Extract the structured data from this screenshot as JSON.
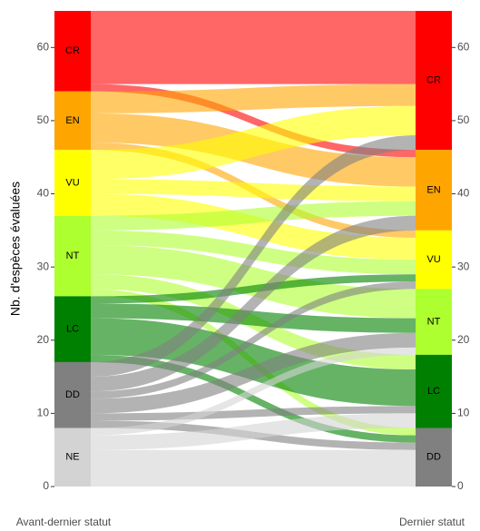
{
  "chart_data": {
    "type": "alluvial",
    "y_label": "Nb. d'espèces évaluées",
    "x_labels": [
      "Avant-dernier statut",
      "Dernier statut"
    ],
    "ylim": [
      0,
      65
    ],
    "yticks": [
      0,
      10,
      20,
      30,
      40,
      50,
      60
    ],
    "strata": [
      {
        "name": "CR",
        "color": "#ff0000"
      },
      {
        "name": "EN",
        "color": "#ffa500"
      },
      {
        "name": "VU",
        "color": "#ffff00"
      },
      {
        "name": "NT",
        "color": "#adff2f"
      },
      {
        "name": "LC",
        "color": "#008000"
      },
      {
        "name": "DD",
        "color": "#808080"
      },
      {
        "name": "NE",
        "color": "#d3d3d3"
      }
    ],
    "flows": [
      {
        "from": 0,
        "to": 0,
        "value": 10
      },
      {
        "from": 0,
        "to": 1,
        "value": 1
      },
      {
        "from": 1,
        "to": 0,
        "value": 3
      },
      {
        "from": 1,
        "to": 1,
        "value": 4
      },
      {
        "from": 1,
        "to": 2,
        "value": 1
      },
      {
        "from": 2,
        "to": 0,
        "value": 4
      },
      {
        "from": 2,
        "to": 1,
        "value": 2
      },
      {
        "from": 2,
        "to": 2,
        "value": 3
      },
      {
        "from": 3,
        "to": 1,
        "value": 2
      },
      {
        "from": 3,
        "to": 2,
        "value": 2
      },
      {
        "from": 3,
        "to": 3,
        "value": 4
      },
      {
        "from": 3,
        "to": 4,
        "value": 2
      },
      {
        "from": 3,
        "to": 5,
        "value": 1
      },
      {
        "from": 4,
        "to": 2,
        "value": 1
      },
      {
        "from": 4,
        "to": 3,
        "value": 2
      },
      {
        "from": 4,
        "to": 4,
        "value": 5
      },
      {
        "from": 4,
        "to": 5,
        "value": 1
      },
      {
        "from": 5,
        "to": 0,
        "value": 2
      },
      {
        "from": 5,
        "to": 1,
        "value": 2
      },
      {
        "from": 5,
        "to": 2,
        "value": 1
      },
      {
        "from": 5,
        "to": 3,
        "value": 2
      },
      {
        "from": 5,
        "to": 4,
        "value": 1
      },
      {
        "from": 5,
        "to": 5,
        "value": 1
      },
      {
        "from": 6,
        "to": 3,
        "value": 1
      },
      {
        "from": 6,
        "to": 4,
        "value": 2
      },
      {
        "from": 6,
        "to": 5,
        "value": 5
      }
    ]
  }
}
